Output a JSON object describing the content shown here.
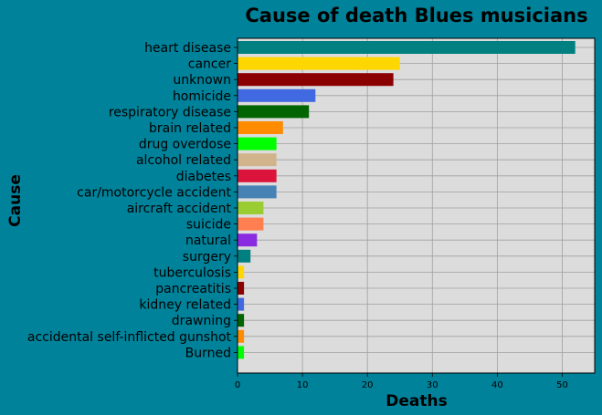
{
  "colors": {
    "background": "#00829A",
    "plot_background": "#DCDCDC",
    "grid": "#A0A0A0"
  },
  "chart_data": {
    "type": "bar",
    "orientation": "horizontal",
    "title": "Cause of death Blues musicians",
    "xlabel": "Deaths",
    "ylabel": "Cause",
    "xlim": [
      0,
      55
    ],
    "xticks": [
      0,
      10,
      20,
      30,
      40,
      50
    ],
    "grid": true,
    "categories": [
      "heart disease",
      "cancer",
      "unknown",
      "homicide",
      "respiratory disease",
      "brain related",
      "drug overdose",
      "alcohol related",
      "diabetes",
      "car/motorcycle accident",
      "aircraft accident",
      "suicide",
      "natural",
      "surgery",
      "tuberculosis",
      "pancreatitis",
      "kidney related",
      "drawning",
      "accidental self-inflicted gunshot",
      "Burned"
    ],
    "values": [
      52,
      25,
      24,
      12,
      11,
      7,
      6,
      6,
      6,
      6,
      4,
      4,
      3,
      2,
      1,
      1,
      1,
      1,
      1,
      1
    ],
    "bar_colors": [
      "#008080",
      "#FFD700",
      "#8B0000",
      "#4169E1",
      "#006400",
      "#FF8C00",
      "#00FF00",
      "#D2B48C",
      "#DC143C",
      "#4682B4",
      "#9ACD32",
      "#FF7F50",
      "#8A2BE2",
      "#008080",
      "#FFD700",
      "#8B0000",
      "#4169E1",
      "#006400",
      "#FF8C00",
      "#00FF00"
    ]
  }
}
